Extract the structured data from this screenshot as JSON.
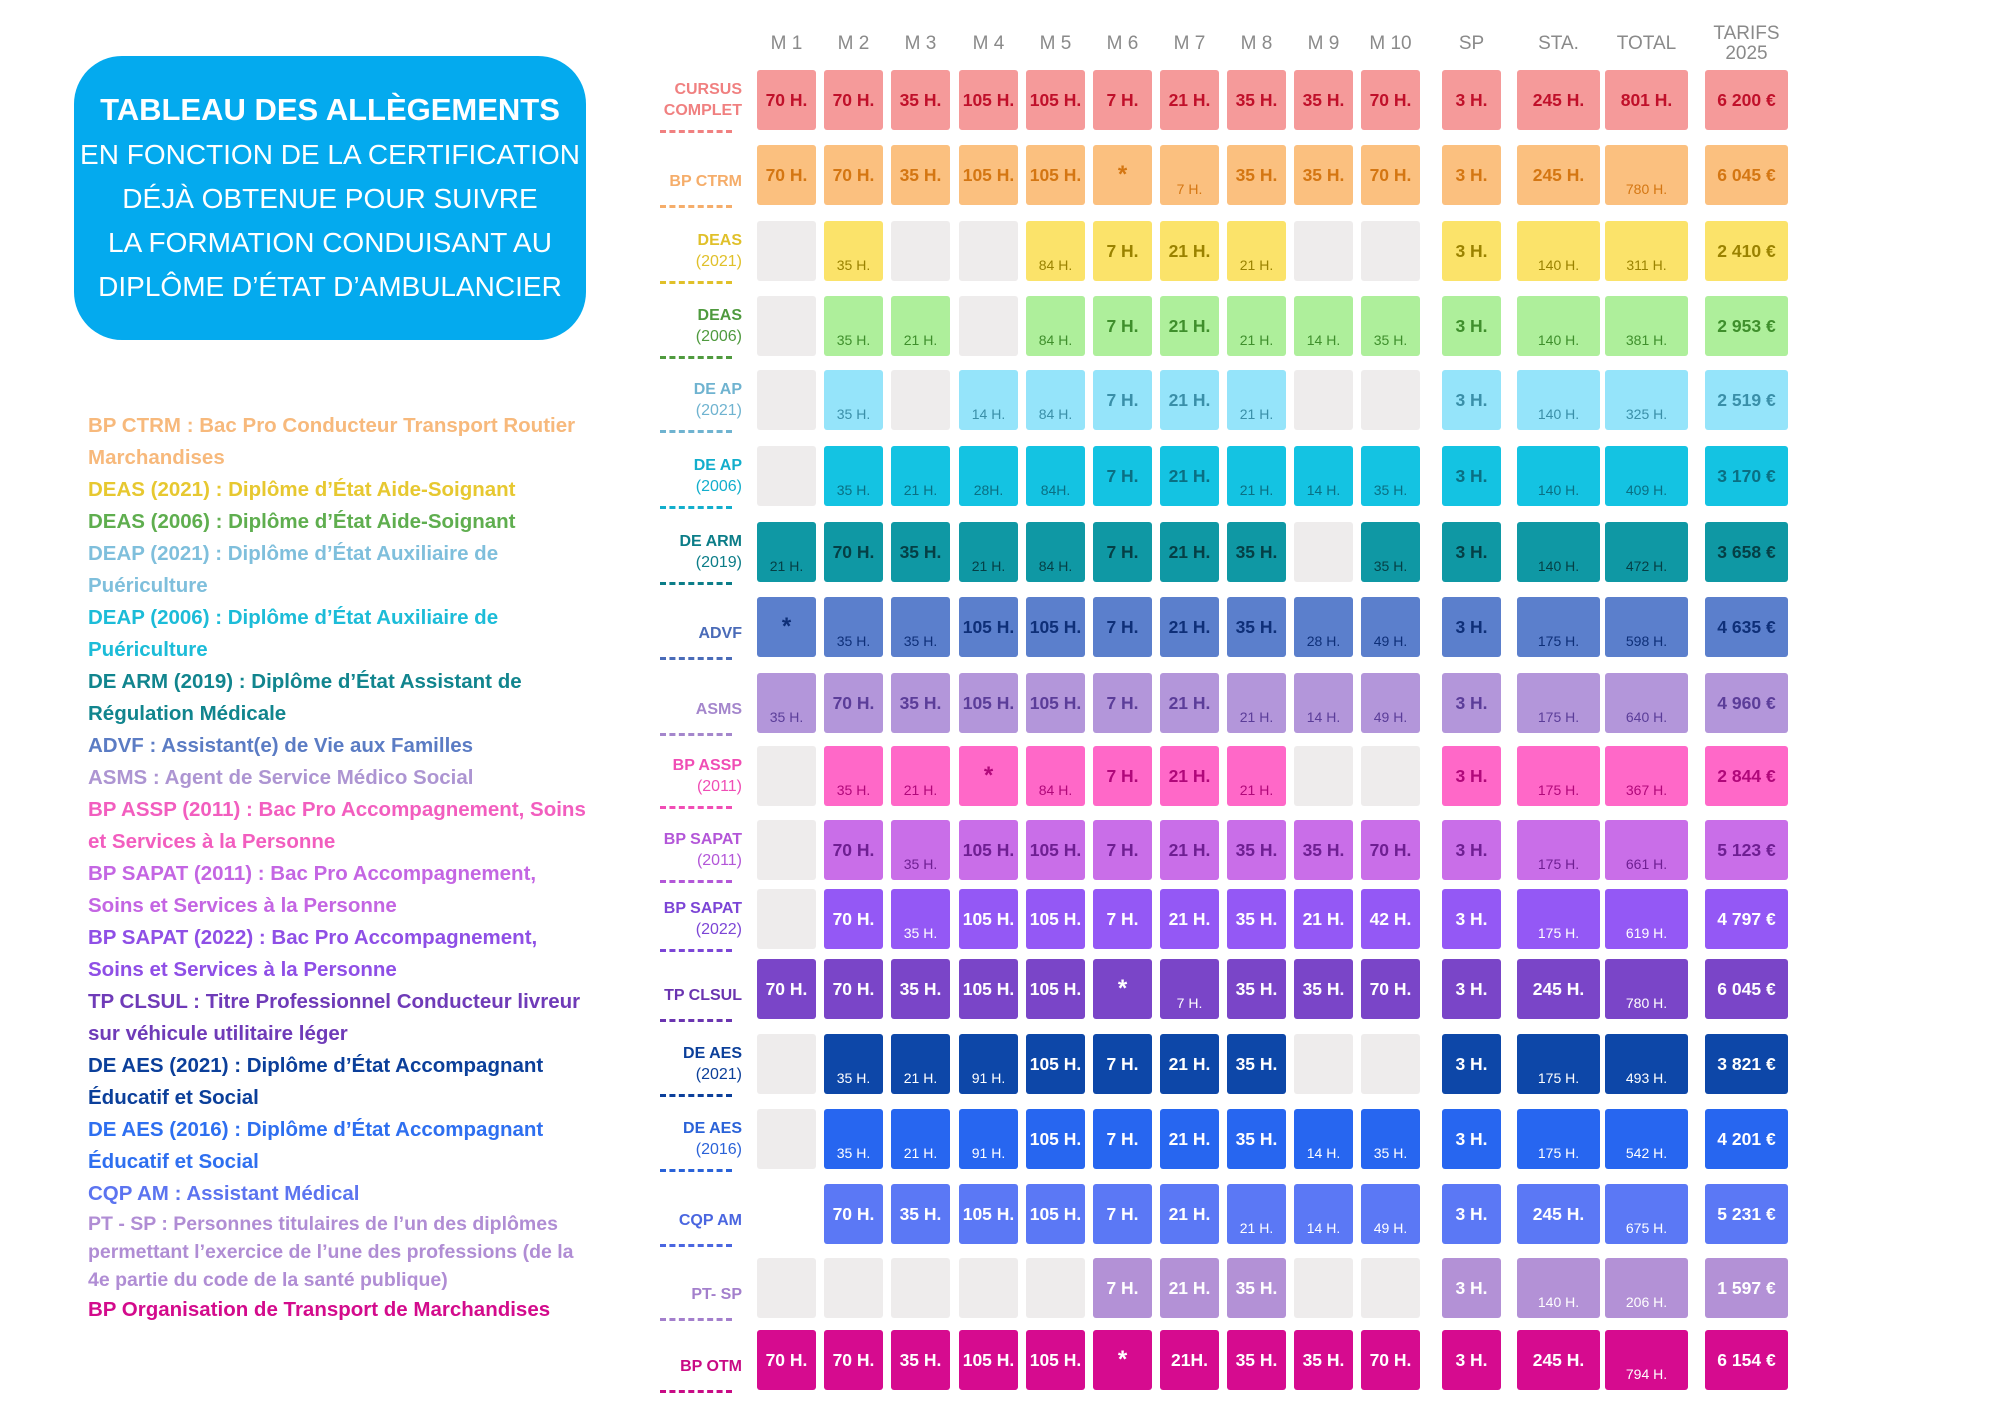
{
  "title": {
    "line1": "TABLEAU DES ALLÈGEMENTS",
    "line2": "EN FONCTION DE LA CERTIFICATION",
    "line3": "DÉJÀ OBTENUE POUR SUIVRE",
    "line4": "LA FORMATION CONDUISANT AU",
    "line5": "DIPLÔME D’ÉTAT D’AMBULANCIER"
  },
  "legend": [
    {
      "text": "BP CTRM : Bac Pro Conducteur Transport Routier Marchandises",
      "color": "#f7b97c"
    },
    {
      "text": "DEAS (2021) : Diplôme d’État Aide-Soignant",
      "color": "#e7c830"
    },
    {
      "text": "DEAS (2006) : Diplôme d’État Aide-Soignant",
      "color": "#5fae4f"
    },
    {
      "text": "DEAP (2021) : Diplôme d’État Auxiliaire de Puériculture",
      "color": "#7fbfdc"
    },
    {
      "text": "DEAP (2006) : Diplôme d’État Auxiliaire de Puériculture",
      "color": "#1cbcd8"
    },
    {
      "text": "DE ARM (2019) : Diplôme d’État Assistant de Régulation Médicale",
      "color": "#11858e"
    },
    {
      "text": "ADVF : Assistant(e) de Vie aux Familles",
      "color": "#5b7cc4"
    },
    {
      "text": "ASMS : Agent de Service Médico Social",
      "color": "#ad95d2"
    },
    {
      "text": "BP ASSP (2011) : Bac Pro Accompagnement, Soins et Services à la Personne",
      "color": "#f25ebf"
    },
    {
      "text": "BP SAPAT (2011) : Bac Pro Accompagnement, Soins et Services à la Personne",
      "color": "#c466e3"
    },
    {
      "text": "BP SAPAT (2022) : Bac Pro Accompagnement, Soins et Services à la Personne",
      "color": "#8f4fe6"
    },
    {
      "text": "TP CLSUL : Titre Professionnel Conducteur livreur sur véhicule utilitaire léger",
      "color": "#6f3bb8"
    },
    {
      "text": "DE AES (2021) : Diplôme d’État Accompagnant Éducatif et Social",
      "color": "#0b3f9a"
    },
    {
      "text": "DE AES (2016) : Diplôme d’État Accompagnant Éducatif et Social",
      "color": "#2e6ff0"
    },
    {
      "text": "CQP AM : Assistant Médical",
      "color": "#5c74f0"
    },
    {
      "text": "PT - SP : Personnes titulaires de l’un des diplômes permettant l’exercice de l’une des professions (de la 4e partie du code de la santé publique)",
      "color": "#b08dd4",
      "small": true
    },
    {
      "text": "BP Organisation de Transport de Marchandises",
      "color": "#d30b8c"
    }
  ],
  "columns": [
    "M 1",
    "M 2",
    "M 3",
    "M 4",
    "M 5",
    "M 6",
    "M 7",
    "M 8",
    "M 9",
    "M 10",
    "SP",
    "STA.",
    "TOTAL",
    "TARIFS 2025"
  ],
  "rows": [
    {
      "label": "CURSUS",
      "sub": "COMPLET",
      "sub_bold": true,
      "color": "#f59a9a",
      "text": "#c0102a",
      "label_color": "#f08080",
      "cells": [
        "70 H.",
        "70 H.",
        "35 H.",
        "105 H.",
        "105 H.",
        "7 H.",
        "21 H.",
        "35 H.",
        "35 H.",
        "70 H.",
        "3 H.",
        "245 H.",
        "801 H.",
        "6 200 €"
      ],
      "small": []
    },
    {
      "label": "BP CTRM",
      "sub": "",
      "color": "#fbc07f",
      "text": "#d47612",
      "label_color": "#f5ad6a",
      "cells": [
        "70 H.",
        "70 H.",
        "35 H.",
        "105 H.",
        "105 H.",
        "*",
        "7 H.",
        "35 H.",
        "35 H.",
        "70 H.",
        "3 H.",
        "245 H.",
        "780 H.",
        "6 045 €"
      ],
      "small": [
        6,
        12
      ]
    },
    {
      "label": "DEAS",
      "sub": "(2021)",
      "color": "#fbe36a",
      "text": "#9a8200",
      "label_color": "#e0c02a",
      "cells": [
        "",
        "35 H.",
        "",
        "",
        "84 H.",
        "7 H.",
        "21 H.",
        "21 H.",
        "",
        "",
        "3 H.",
        "140 H.",
        "311 H.",
        "2 410 €"
      ],
      "small": [
        1,
        4,
        7,
        11,
        12
      ]
    },
    {
      "label": "DEAS",
      "sub": "(2006)",
      "color": "#aeef9b",
      "text": "#3f8f2c",
      "label_color": "#4f9a3e",
      "cells": [
        "",
        "35 H.",
        "21 H.",
        "",
        "84 H.",
        "7 H.",
        "21 H.",
        "21 H.",
        "14 H.",
        "35 H.",
        "3 H.",
        "140 H.",
        "381 H.",
        "2 953 €"
      ],
      "small": [
        1,
        2,
        4,
        7,
        8,
        9,
        11,
        12
      ]
    },
    {
      "label": "DE AP",
      "sub": "(2021)",
      "color": "#95e4fa",
      "text": "#3a8fa8",
      "label_color": "#6fb3d0",
      "cells": [
        "",
        "35 H.",
        "",
        "14 H.",
        "84 H.",
        "7 H.",
        "21 H.",
        "21 H.",
        "",
        "",
        "3 H.",
        "140 H.",
        "325 H.",
        "2 519 €"
      ],
      "small": [
        1,
        3,
        4,
        7,
        11,
        12
      ]
    },
    {
      "label": "DE AP",
      "sub": "(2006)",
      "color": "#14c3e2",
      "text": "#0a6f83",
      "label_color": "#12aecc",
      "cells": [
        "",
        "35 H.",
        "21 H.",
        "28H.",
        "84H.",
        "7 H.",
        "21 H.",
        "21 H.",
        "14 H.",
        "35 H.",
        "3 H.",
        "140 H.",
        "409 H.",
        "3 170 €"
      ],
      "small": [
        1,
        2,
        3,
        4,
        7,
        8,
        9,
        11,
        12
      ]
    },
    {
      "label": "DE ARM",
      "sub": "(2019)",
      "color": "#0f98a4",
      "text": "#053f45",
      "label_color": "#0b7d88",
      "cells": [
        "21 H.",
        "70 H.",
        "35 H.",
        "21 H.",
        "84 H.",
        "7 H.",
        "21 H.",
        "35 H.",
        "",
        "35 H.",
        "3 H.",
        "140 H.",
        "472 H.",
        "3 658 €"
      ],
      "small": [
        0,
        3,
        4,
        9,
        11,
        12
      ]
    },
    {
      "label": "ADVF",
      "sub": "",
      "color": "#5b7fcc",
      "text": "#0e2f78",
      "label_color": "#4a6bb8",
      "cells": [
        "*",
        "35 H.",
        "35 H.",
        "105 H.",
        "105 H.",
        "7 H.",
        "21 H.",
        "35 H.",
        "28 H.",
        "49 H.",
        "3 H.",
        "175 H.",
        "598 H.",
        "4 635 €"
      ],
      "small": [
        1,
        2,
        8,
        9,
        11,
        12
      ]
    },
    {
      "label": "ASMS",
      "sub": "",
      "color": "#b396da",
      "text": "#5b3d99",
      "label_color": "#a486cc",
      "cells": [
        "35 H.",
        "70 H.",
        "35 H.",
        "105 H.",
        "105 H.",
        "7 H.",
        "21 H.",
        "21 H.",
        "14 H.",
        "49 H.",
        "3 H.",
        "175 H.",
        "640 H.",
        "4 960 €"
      ],
      "small": [
        0,
        7,
        8,
        9,
        11,
        12
      ]
    },
    {
      "label": "BP ASSP",
      "sub": "(2011)",
      "color": "#ff68c8",
      "text": "#b0087a",
      "label_color": "#f04db5",
      "cells": [
        "",
        "35 H.",
        "21 H.",
        "*",
        "84 H.",
        "7 H.",
        "21 H.",
        "21 H.",
        "",
        "",
        "3 H.",
        "175 H.",
        "367 H.",
        "2 844 €"
      ],
      "small": [
        1,
        2,
        4,
        7,
        11,
        12
      ]
    },
    {
      "label": "BP SAPAT",
      "sub": "(2011)",
      "color": "#c96ee8",
      "text": "#6e1f92",
      "label_color": "#b356d8",
      "cells": [
        "",
        "70 H.",
        "35 H.",
        "105 H.",
        "105 H.",
        "7 H.",
        "21 H.",
        "35 H.",
        "35 H.",
        "70 H.",
        "3 H.",
        "175 H.",
        "661 H.",
        "5 123 €"
      ],
      "small": [
        2,
        11,
        12
      ]
    },
    {
      "label": "BP SAPAT",
      "sub": "(2022)",
      "color": "#9458f5",
      "text": "#ffffff",
      "label_color": "#7c45d6",
      "cells": [
        "",
        "70 H.",
        "35 H.",
        "105 H.",
        "105 H.",
        "7 H.",
        "21 H.",
        "35 H.",
        "21 H.",
        "42 H.",
        "3 H.",
        "175 H.",
        "619 H.",
        "4 797 €"
      ],
      "small": [
        2,
        11,
        12
      ]
    },
    {
      "label": "TP CLSUL",
      "sub": "",
      "color": "#7a45c8",
      "text": "#ffffff",
      "label_color": "#6a34b0",
      "cells": [
        "70 H.",
        "70 H.",
        "35 H.",
        "105 H.",
        "105 H.",
        "*",
        "7 H.",
        "35 H.",
        "35 H.",
        "70 H.",
        "3 H.",
        "245 H.",
        "780 H.",
        "6 045 €"
      ],
      "small": [
        6,
        12
      ]
    },
    {
      "label": "DE AES",
      "sub": "(2021)",
      "color": "#0d47a8",
      "text": "#ffffff",
      "label_color": "#0b3f9a",
      "cells": [
        "",
        "35 H.",
        "21 H.",
        "91 H.",
        "105 H.",
        "7 H.",
        "21 H.",
        "35 H.",
        "",
        "",
        "3 H.",
        "175 H.",
        "493 H.",
        "3 821 €"
      ],
      "small": [
        1,
        2,
        3,
        11,
        12
      ]
    },
    {
      "label": "DE AES",
      "sub": "(2016)",
      "color": "#2766f0",
      "text": "#ffffff",
      "label_color": "#2a62d8",
      "cells": [
        "",
        "35 H.",
        "21 H.",
        "91 H.",
        "105 H.",
        "7 H.",
        "21 H.",
        "35 H.",
        "14 H.",
        "35 H.",
        "3 H.",
        "175 H.",
        "542 H.",
        "4 201 €"
      ],
      "small": [
        1,
        2,
        3,
        8,
        9,
        11,
        12
      ]
    },
    {
      "label": "CQP AM",
      "sub": "",
      "color": "#5b78f5",
      "text": "#ffffff",
      "label_color": "#4a66e0",
      "cells": [
        null,
        "70 H.",
        "35 H.",
        "105 H.",
        "105 H.",
        "7 H.",
        "21 H.",
        "21 H.",
        "14 H.",
        "49 H.",
        "3 H.",
        "245 H.",
        "675 H.",
        "5 231 €"
      ],
      "small": [
        7,
        8,
        9,
        12
      ]
    },
    {
      "label": "PT- SP",
      "sub": "",
      "color": "#b391d6",
      "text": "#ffffff",
      "label_color": "#a37fcc",
      "cells": [
        "",
        "",
        "",
        "",
        "",
        "7 H.",
        "21 H.",
        "35 H.",
        "",
        "",
        "3 H.",
        "140 H.",
        "206 H.",
        "1 597 €"
      ],
      "small": [
        11,
        12
      ]
    },
    {
      "label": "BP OTM",
      "sub": "",
      "color": "#d60b8f",
      "text": "#ffffff",
      "label_color": "#c80a85",
      "cells": [
        "70 H.",
        "70 H.",
        "35 H.",
        "105 H.",
        "105 H.",
        "*",
        "21H.",
        "35 H.",
        "35 H.",
        "70 H.",
        "3 H.",
        "245 H.",
        "794 H.",
        "6 154 €"
      ],
      "small": [
        12
      ]
    }
  ]
}
